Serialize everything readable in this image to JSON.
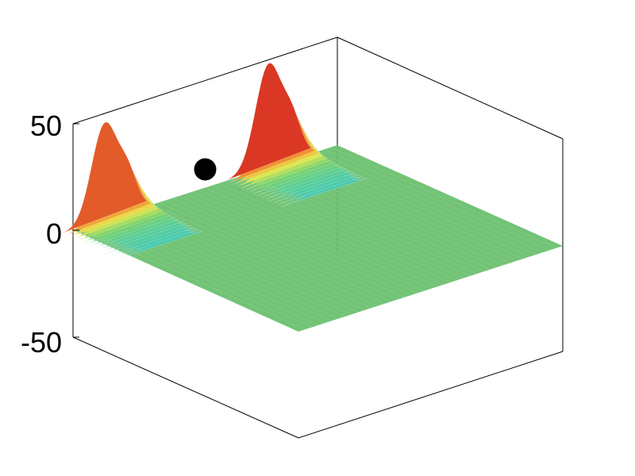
{
  "chart_data": {
    "type": "surface",
    "title": "",
    "xlabel": "",
    "ylabel": "",
    "zlabel": "",
    "zlim": [
      -50,
      50
    ],
    "z_ticks": [
      {
        "value": 50,
        "label": "50"
      },
      {
        "value": 0,
        "label": "0"
      },
      {
        "value": -50,
        "label": "-50"
      }
    ],
    "grid": false,
    "colormap": "jet",
    "colors": {
      "baseline": "#6cc070",
      "low": "#3cc9c4",
      "mid": "#e8e84a",
      "high": "#d42020"
    },
    "surface_peaks": [
      {
        "name": "left-ridge",
        "u": 0.12,
        "z": 45
      },
      {
        "name": "right-ridge",
        "u": 0.74,
        "z": 48
      }
    ],
    "marker": {
      "shape": "filled-circle",
      "color": "#000000",
      "u": 0.38,
      "z": 20
    }
  }
}
